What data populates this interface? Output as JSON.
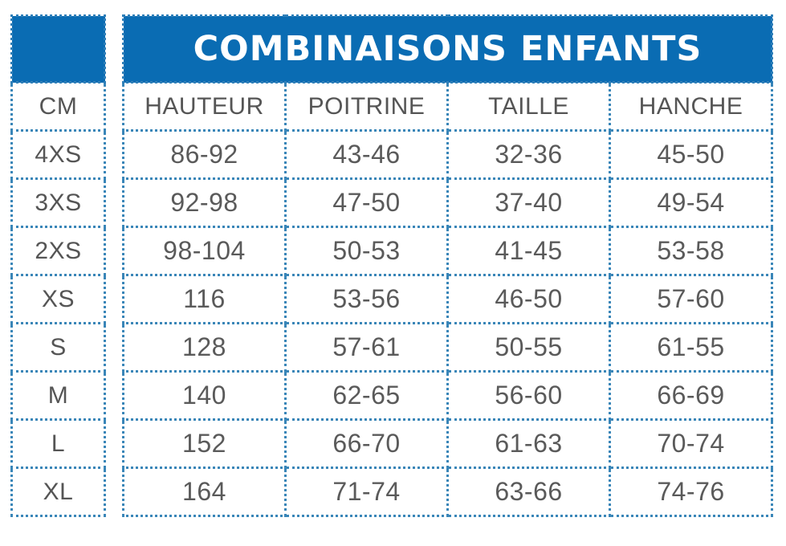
{
  "title": "COMBINAISONS ENFANTS",
  "colors": {
    "header_blue": "#0A6CB3",
    "border_blue": "#3A86B8",
    "text_gray": "#5A5A5A"
  },
  "stub_header": "CM",
  "columns": [
    "HAUTEUR",
    "POITRINE",
    "TAILLE",
    "HANCHE"
  ],
  "rows": [
    {
      "size": "4XS",
      "values": [
        "86-92",
        "43-46",
        "32-36",
        "45-50"
      ]
    },
    {
      "size": "3XS",
      "values": [
        "92-98",
        "47-50",
        "37-40",
        "49-54"
      ]
    },
    {
      "size": "2XS",
      "values": [
        "98-104",
        "50-53",
        "41-45",
        "53-58"
      ]
    },
    {
      "size": "XS",
      "values": [
        "116",
        "53-56",
        "46-50",
        "57-60"
      ]
    },
    {
      "size": "S",
      "values": [
        "128",
        "57-61",
        "50-55",
        "61-55"
      ]
    },
    {
      "size": "M",
      "values": [
        "140",
        "62-65",
        "56-60",
        "66-69"
      ]
    },
    {
      "size": "L",
      "values": [
        "152",
        "66-70",
        "61-63",
        "70-74"
      ]
    },
    {
      "size": "XL",
      "values": [
        "164",
        "71-74",
        "63-66",
        "74-76"
      ]
    }
  ]
}
